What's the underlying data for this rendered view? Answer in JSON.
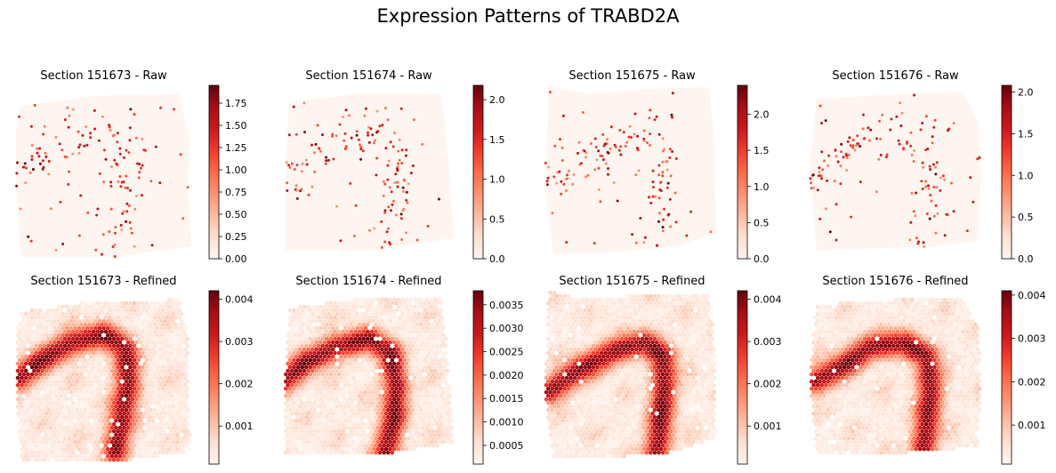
{
  "figure": {
    "title": "Expression Patterns of TRABD2A"
  },
  "colors": {
    "cmap_low": "#fff5f0",
    "cmap_mid": "#fb6a4a",
    "cmap_high": "#67000d",
    "tissue_bg": "#fff5f0"
  },
  "chart_data": [
    {
      "type": "scatter",
      "title": "Section 151673 - Raw",
      "colorbar": {
        "range": [
          0,
          1.95
        ],
        "ticks": [
          0.0,
          0.25,
          0.5,
          0.75,
          1.0,
          1.25,
          1.5,
          1.75
        ],
        "tick_labels": [
          "0.00",
          "0.25",
          "0.50",
          "0.75",
          "1.00",
          "1.25",
          "1.50",
          "1.75"
        ]
      }
    },
    {
      "type": "scatter",
      "title": "Section 151674 - Raw",
      "colorbar": {
        "range": [
          0,
          2.18
        ],
        "ticks": [
          0.0,
          0.5,
          1.0,
          1.5,
          2.0
        ],
        "tick_labels": [
          "0.0",
          "0.5",
          "1.0",
          "1.5",
          "2.0"
        ]
      }
    },
    {
      "type": "scatter",
      "title": "Section 151675 - Raw",
      "colorbar": {
        "range": [
          0,
          2.4
        ],
        "ticks": [
          0.0,
          0.5,
          1.0,
          1.5,
          2.0
        ],
        "tick_labels": [
          "0.0",
          "0.5",
          "1.0",
          "1.5",
          "2.0"
        ]
      }
    },
    {
      "type": "scatter",
      "title": "Section 151676 - Raw",
      "colorbar": {
        "range": [
          0,
          2.08
        ],
        "ticks": [
          0.0,
          0.5,
          1.0,
          1.5,
          2.0
        ],
        "tick_labels": [
          "0.0",
          "0.5",
          "1.0",
          "1.5",
          "2.0"
        ]
      }
    },
    {
      "type": "scatter",
      "title": "Section 151673 - Refined",
      "colorbar": {
        "range": [
          0.0001,
          0.0042
        ],
        "ticks": [
          0.001,
          0.002,
          0.003,
          0.004
        ],
        "tick_labels": [
          "0.001",
          "0.002",
          "0.003",
          "0.004"
        ]
      }
    },
    {
      "type": "scatter",
      "title": "Section 151674 - Refined",
      "colorbar": {
        "range": [
          0.0001,
          0.0038
        ],
        "ticks": [
          0.0005,
          0.001,
          0.0015,
          0.002,
          0.0025,
          0.003,
          0.0035
        ],
        "tick_labels": [
          "0.0005",
          "0.0010",
          "0.0015",
          "0.0020",
          "0.0025",
          "0.0030",
          "0.0035"
        ]
      }
    },
    {
      "type": "scatter",
      "title": "Section 151675 - Refined",
      "colorbar": {
        "range": [
          0.0001,
          0.0042
        ],
        "ticks": [
          0.001,
          0.002,
          0.003,
          0.004
        ],
        "tick_labels": [
          "0.001",
          "0.002",
          "0.003",
          "0.004"
        ]
      }
    },
    {
      "type": "scatter",
      "title": "Section 151676 - Refined",
      "colorbar": {
        "range": [
          0.0001,
          0.0041
        ],
        "ticks": [
          0.001,
          0.002,
          0.003,
          0.004
        ],
        "tick_labels": [
          "0.001",
          "0.002",
          "0.003",
          "0.004"
        ]
      }
    }
  ]
}
